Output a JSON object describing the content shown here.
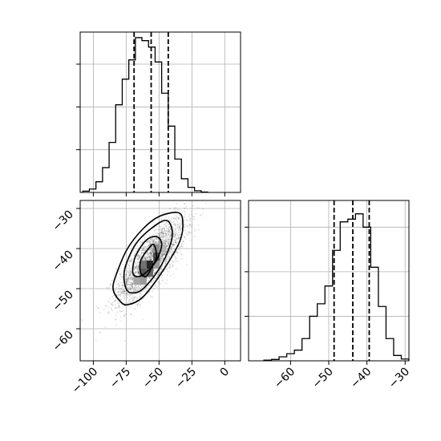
{
  "chart_data": [
    {
      "panel": "top-left",
      "type": "histogram",
      "xlim": [
        -110,
        12
      ],
      "ylim": [
        0,
        0.0375
      ],
      "grid": true,
      "x_ticks": [
        -100,
        -75,
        -50,
        -25,
        0
      ],
      "y_ticks": [
        0.01,
        0.02,
        0.03
      ],
      "show_x_tick_labels": false,
      "show_y_tick_labels": false,
      "bins": [
        {
          "x0": -108,
          "x1": -103,
          "value": 0.0003
        },
        {
          "x0": -103,
          "x1": -98,
          "value": 0.0008
        },
        {
          "x0": -98,
          "x1": -93,
          "value": 0.0025
        },
        {
          "x0": -93,
          "x1": -88,
          "value": 0.0058
        },
        {
          "x0": -88,
          "x1": -83,
          "value": 0.0117
        },
        {
          "x0": -83,
          "x1": -78,
          "value": 0.0205
        },
        {
          "x0": -78,
          "x1": -73,
          "value": 0.0265
        },
        {
          "x0": -73,
          "x1": -68,
          "value": 0.031
        },
        {
          "x0": -68,
          "x1": -63,
          "value": 0.0362
        },
        {
          "x0": -63,
          "x1": -58,
          "value": 0.0355
        },
        {
          "x0": -58,
          "x1": -53,
          "value": 0.034
        },
        {
          "x0": -53,
          "x1": -48,
          "value": 0.0305
        },
        {
          "x0": -48,
          "x1": -43,
          "value": 0.0232
        },
        {
          "x0": -43,
          "x1": -38,
          "value": 0.0155
        },
        {
          "x0": -38,
          "x1": -33,
          "value": 0.0078
        },
        {
          "x0": -33,
          "x1": -28,
          "value": 0.0032
        },
        {
          "x0": -28,
          "x1": -23,
          "value": 0.0012
        },
        {
          "x0": -23,
          "x1": -18,
          "value": 0.0004
        },
        {
          "x0": -18,
          "x1": -13,
          "value": 0.0001
        }
      ],
      "quantile_lines": [
        -69,
        -56,
        -43
      ]
    },
    {
      "panel": "bottom-left",
      "type": "scatter-contour",
      "xlim": [
        -110,
        12
      ],
      "ylim": [
        -68,
        -28
      ],
      "grid": true,
      "x_ticks": [
        -100,
        -75,
        -50,
        -25,
        0
      ],
      "y_ticks": [
        -60,
        -50,
        -40,
        -30
      ],
      "x_tick_labels": [
        "−100",
        "−75",
        "−50",
        "−25",
        "0"
      ],
      "y_tick_labels": [
        "−60",
        "−50",
        "−40",
        "−30"
      ],
      "point_color": "#000000",
      "density_center": [
        -56,
        -43
      ],
      "density_cells": [
        {
          "x": -62,
          "y": -44,
          "w": 5,
          "h": 2,
          "shade": 0.55
        },
        {
          "x": -57,
          "y": -44,
          "w": 5,
          "h": 2,
          "shade": 0.85
        },
        {
          "x": -52,
          "y": -42,
          "w": 5,
          "h": 2,
          "shade": 0.7
        },
        {
          "x": -62,
          "y": -46,
          "w": 5,
          "h": 2,
          "shade": 0.65
        },
        {
          "x": -57,
          "y": -46,
          "w": 5,
          "h": 2,
          "shade": 0.6
        },
        {
          "x": -52,
          "y": -40,
          "w": 5,
          "h": 2,
          "shade": 0.45
        },
        {
          "x": -67,
          "y": -48,
          "w": 5,
          "h": 2,
          "shade": 0.35
        },
        {
          "x": -47,
          "y": -40,
          "w": 5,
          "h": 2,
          "shade": 0.3
        },
        {
          "x": -62,
          "y": -48,
          "w": 5,
          "h": 2,
          "shade": 0.4
        },
        {
          "x": -52,
          "y": -44,
          "w": 5,
          "h": 2,
          "shade": 0.4
        }
      ],
      "contours": [
        [
          [
            -80,
            -53
          ],
          [
            -85,
            -50
          ],
          [
            -82,
            -46
          ],
          [
            -74,
            -40
          ],
          [
            -62,
            -35
          ],
          [
            -50,
            -32
          ],
          [
            -36,
            -31
          ],
          [
            -32,
            -33
          ],
          [
            -34,
            -38
          ],
          [
            -46,
            -45
          ],
          [
            -62,
            -52
          ],
          [
            -74,
            -54
          ]
        ],
        [
          [
            -76,
            -49
          ],
          [
            -76,
            -45
          ],
          [
            -68,
            -39
          ],
          [
            -56,
            -35
          ],
          [
            -44,
            -33
          ],
          [
            -40,
            -37
          ],
          [
            -48,
            -44
          ],
          [
            -62,
            -50
          ],
          [
            -72,
            -51
          ]
        ],
        [
          [
            -70,
            -46
          ],
          [
            -68,
            -42
          ],
          [
            -60,
            -38
          ],
          [
            -52,
            -37
          ],
          [
            -48,
            -39
          ],
          [
            -52,
            -43
          ],
          [
            -60,
            -46
          ],
          [
            -66,
            -47
          ]
        ],
        [
          [
            -64,
            -46
          ],
          [
            -64,
            -43
          ],
          [
            -58,
            -40
          ],
          [
            -54,
            -39
          ],
          [
            -52,
            -42
          ],
          [
            -56,
            -45
          ],
          [
            -60,
            -47
          ]
        ]
      ]
    },
    {
      "panel": "bottom-right",
      "type": "histogram",
      "xlim": [
        -71,
        -29
      ],
      "ylim": [
        0,
        0.18
      ],
      "grid": true,
      "x_ticks": [
        -60,
        -50,
        -40,
        -30
      ],
      "y_ticks": [
        0.05,
        0.1,
        0.15
      ],
      "x_tick_labels": [
        "−60",
        "−50",
        "−40",
        "−30"
      ],
      "show_y_tick_labels": false,
      "bins": [
        {
          "x0": -67,
          "x1": -65,
          "value": 0.0008
        },
        {
          "x0": -65,
          "x1": -63,
          "value": 0.0015
        },
        {
          "x0": -63,
          "x1": -61,
          "value": 0.0045
        },
        {
          "x0": -61,
          "x1": -59,
          "value": 0.008
        },
        {
          "x0": -59,
          "x1": -57,
          "value": 0.012
        },
        {
          "x0": -57,
          "x1": -55,
          "value": 0.025
        },
        {
          "x0": -55,
          "x1": -53,
          "value": 0.05
        },
        {
          "x0": -53,
          "x1": -51,
          "value": 0.064
        },
        {
          "x0": -51,
          "x1": -49,
          "value": 0.084
        },
        {
          "x0": -49,
          "x1": -47,
          "value": 0.124
        },
        {
          "x0": -47,
          "x1": -45,
          "value": 0.156
        },
        {
          "x0": -45,
          "x1": -43,
          "value": 0.159
        },
        {
          "x0": -43,
          "x1": -41,
          "value": 0.165
        },
        {
          "x0": -41,
          "x1": -39,
          "value": 0.15
        },
        {
          "x0": -39,
          "x1": -37,
          "value": 0.105
        },
        {
          "x0": -37,
          "x1": -35,
          "value": 0.061
        },
        {
          "x0": -35,
          "x1": -33,
          "value": 0.025
        },
        {
          "x0": -33,
          "x1": -31,
          "value": 0.006
        },
        {
          "x0": -31,
          "x1": -29,
          "value": 0.002
        }
      ],
      "quantile_lines": [
        -48.6,
        -43.7,
        -39.4
      ]
    }
  ]
}
